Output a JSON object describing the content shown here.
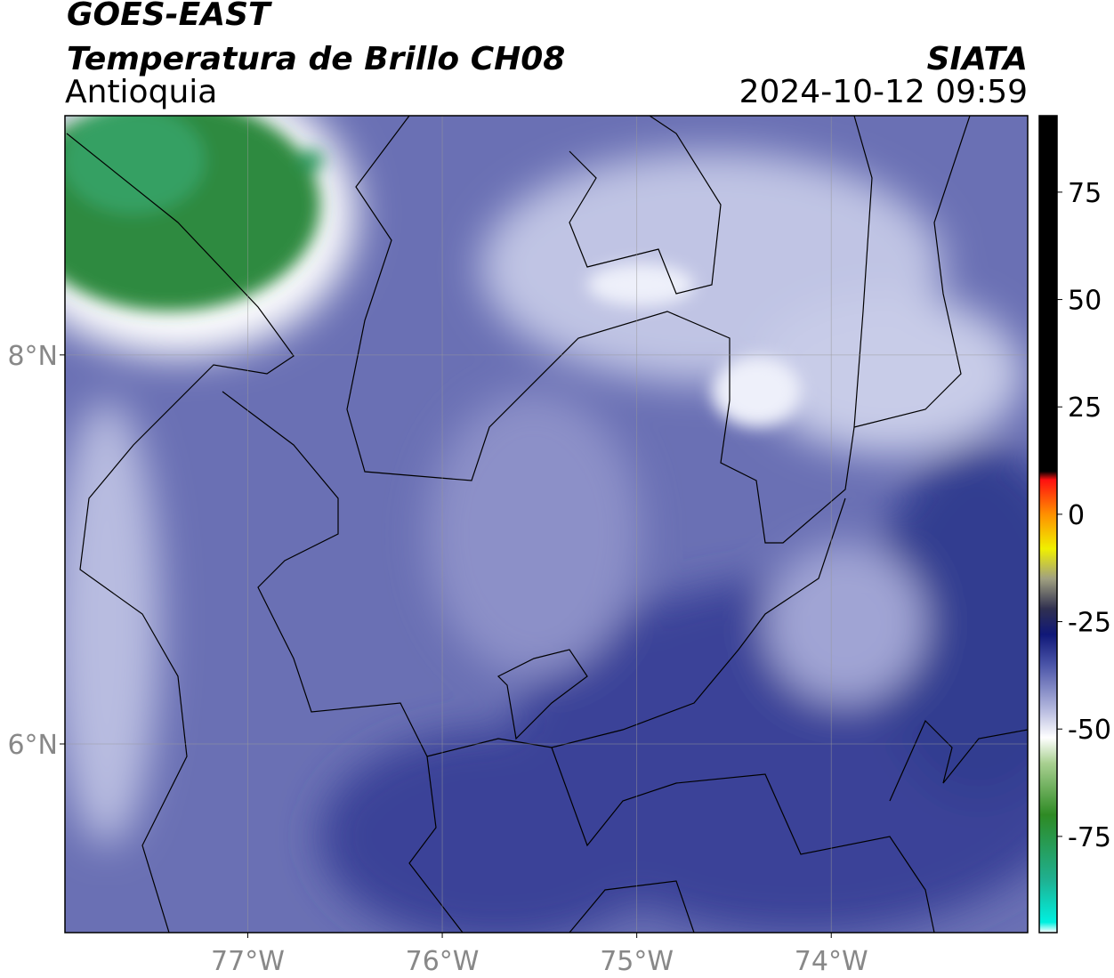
{
  "header": {
    "satellite": "GOES-EAST",
    "product": "Temperatura de Brillo CH08",
    "region": "Antioquia",
    "source": "SIATA",
    "timestamp": "2024-10-12 09:59"
  },
  "map": {
    "xlim": [
      -77.94,
      -72.99
    ],
    "ylim": [
      5.03,
      9.23
    ],
    "xticks": [
      {
        "value": -77,
        "label": "77°W"
      },
      {
        "value": -76,
        "label": "76°W"
      },
      {
        "value": -75,
        "label": "75°W"
      },
      {
        "value": -74,
        "label": "74°W"
      }
    ],
    "yticks": [
      {
        "value": 8,
        "label": "8°N"
      },
      {
        "value": 6,
        "label": "6°N"
      }
    ],
    "grid": true
  },
  "colorbar": {
    "lim": [
      -97.4,
      92.8
    ],
    "ticks": [
      75,
      50,
      25,
      0,
      -25,
      -50,
      -75
    ],
    "colormap": [
      [
        -97.4,
        "#ffffff"
      ],
      [
        -95,
        "#00f0e0"
      ],
      [
        -85,
        "#1fb090"
      ],
      [
        -70,
        "#2e8a24"
      ],
      [
        -58,
        "#a8d090"
      ],
      [
        -52,
        "#ffffff"
      ],
      [
        -45,
        "#b0b4dc"
      ],
      [
        -35,
        "#4a54a8"
      ],
      [
        -28,
        "#101878"
      ],
      [
        -22,
        "#303050"
      ],
      [
        -15,
        "#a0a080"
      ],
      [
        -8,
        "#f0f000"
      ],
      [
        0,
        "#ff9000"
      ],
      [
        8,
        "#ff1010"
      ],
      [
        10,
        "#000000"
      ],
      [
        92.8,
        "#000000"
      ]
    ]
  }
}
